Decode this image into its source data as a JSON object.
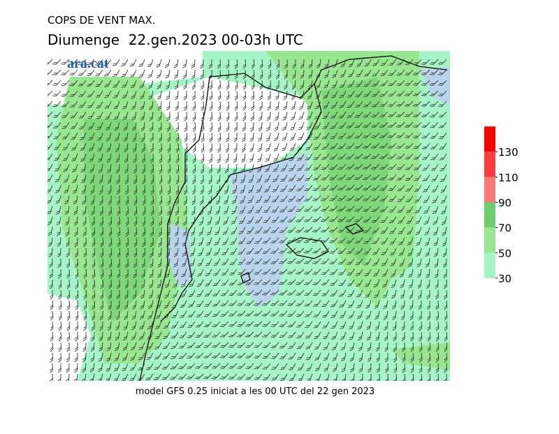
{
  "header": {
    "title": "COPS DE VENT MAX.",
    "subtitle": "Diumenge  22.gen.2023 00-03h UTC",
    "logo": "ara.cat"
  },
  "footer": "model GFS 0.25 iniciat a les 00 UTC del 22 gen 2023",
  "colorbar": {
    "lim": [
      30,
      150
    ],
    "ticks": [
      30,
      50,
      70,
      90,
      110,
      130
    ],
    "bounds": [
      30,
      50,
      70,
      90,
      110,
      130,
      150
    ],
    "colors": [
      "#a6f5c6",
      "#98e690",
      "#6ccf6c",
      "#ff7878",
      "#ff3c3c",
      "#ff0000"
    ]
  }
}
